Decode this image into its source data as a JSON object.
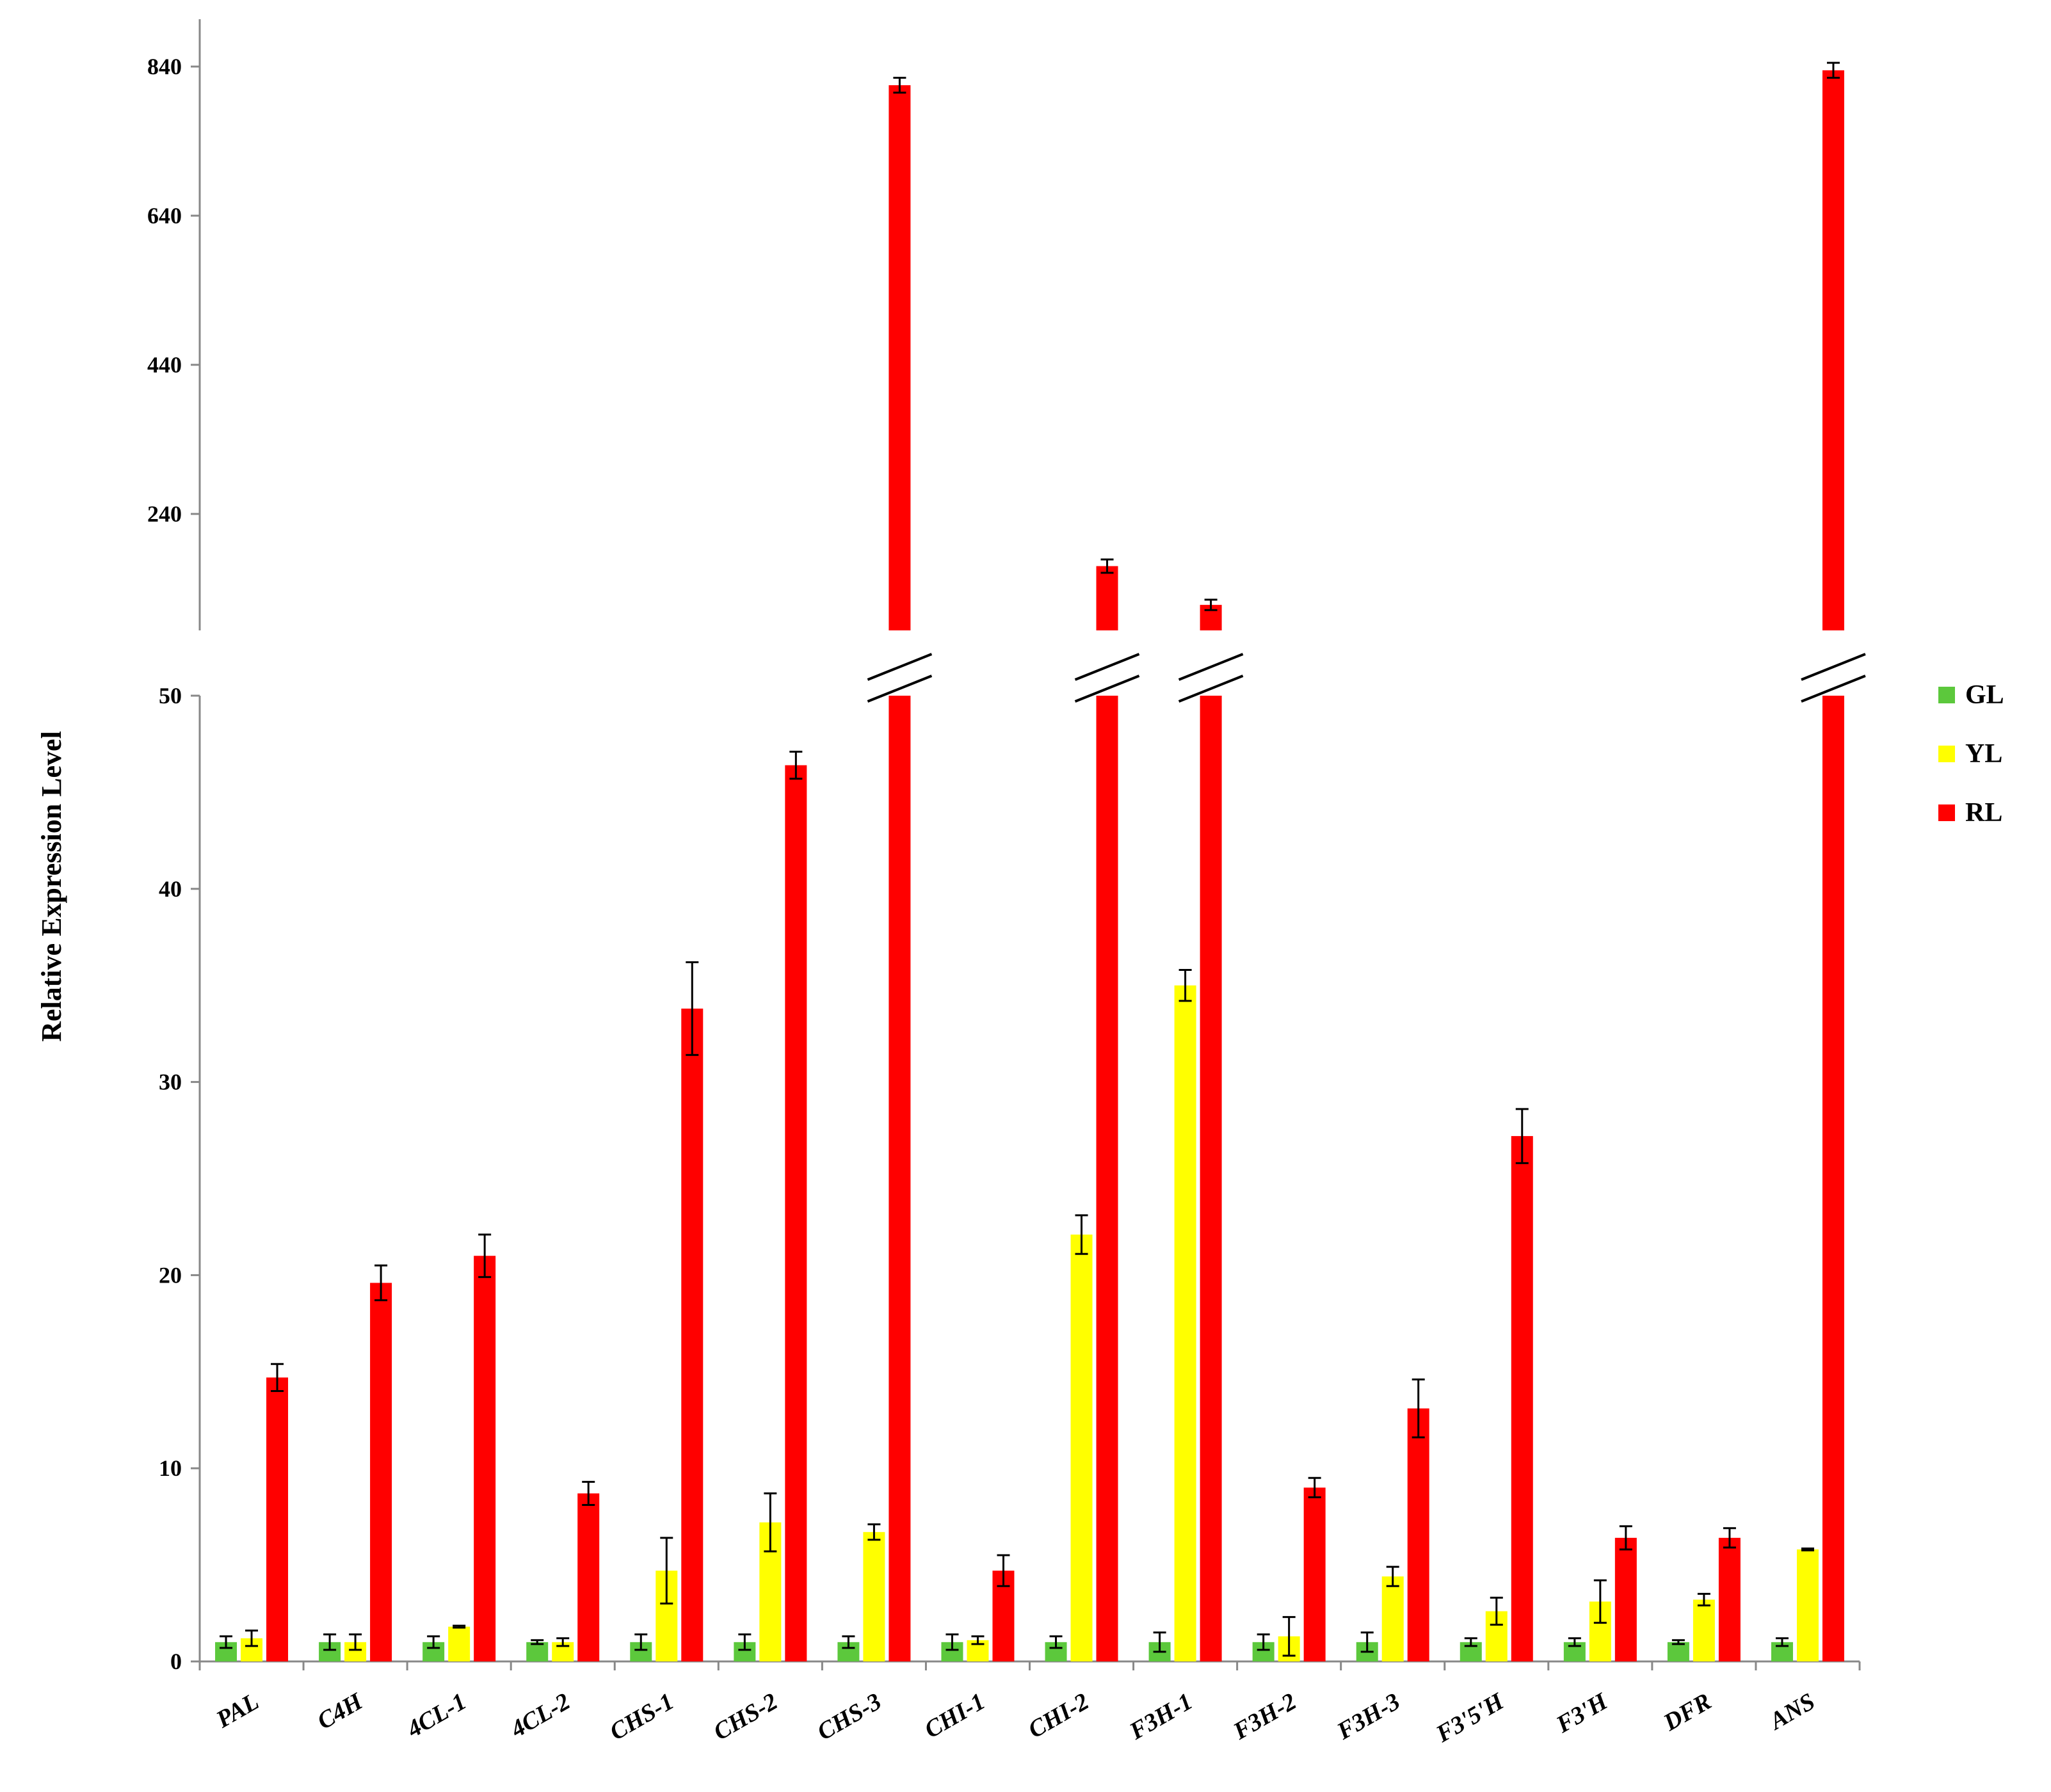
{
  "chart_data": {
    "type": "bar",
    "title": "",
    "xlabel": "",
    "ylabel": "Relative Expression Level",
    "categories": [
      "PAL",
      "C4H",
      "4CL-1",
      "4CL-2",
      "CHS-1",
      "CHS-2",
      "CHS-3",
      "CHI-1",
      "CHI-2",
      "F3H-1",
      "F3H-2",
      "F3H-3",
      "F3'5'H",
      "F3'H",
      "DFR",
      "ANS"
    ],
    "series": [
      {
        "name": "GL",
        "color": "#5cc83c",
        "values": [
          1.0,
          1.0,
          1.0,
          1.0,
          1.0,
          1.0,
          1.0,
          1.0,
          1.0,
          1.0,
          1.0,
          1.0,
          1.0,
          1.0,
          1.0,
          1.0
        ],
        "errors": [
          0.3,
          0.4,
          0.3,
          0.1,
          0.4,
          0.4,
          0.3,
          0.4,
          0.3,
          0.5,
          0.4,
          0.5,
          0.2,
          0.2,
          0.1,
          0.2
        ]
      },
      {
        "name": "YL",
        "color": "#ffff00",
        "values": [
          1.2,
          1.0,
          1.8,
          1.0,
          4.7,
          7.2,
          6.7,
          1.1,
          22.1,
          35.0,
          1.3,
          4.4,
          2.6,
          3.1,
          3.2,
          5.8
        ],
        "errors": [
          0.4,
          0.4,
          0.05,
          0.2,
          1.7,
          1.5,
          0.4,
          0.2,
          1.0,
          0.8,
          1.0,
          0.5,
          0.7,
          1.1,
          0.3,
          0.05
        ]
      },
      {
        "name": "RL",
        "color": "#ff0000",
        "values": [
          14.7,
          19.6,
          21.0,
          8.7,
          33.8,
          46.4,
          815,
          4.7,
          170,
          118,
          9.0,
          13.1,
          27.2,
          6.4,
          6.4,
          835
        ],
        "errors": [
          0.7,
          0.9,
          1.1,
          0.6,
          2.4,
          0.7,
          10,
          0.8,
          9,
          7,
          0.5,
          1.5,
          1.4,
          0.6,
          0.5,
          10
        ]
      }
    ],
    "ylim_lower": [
      0,
      50
    ],
    "yticks_lower": [
      "0",
      "10",
      "20",
      "30",
      "40",
      "50"
    ],
    "ylim_upper": [
      100,
      870
    ],
    "yticks_upper": [
      "240",
      "440",
      "640",
      "840"
    ],
    "axis_break": true,
    "broken_categories": [
      "CHS-3",
      "CHI-2",
      "F3H-1",
      "ANS"
    ],
    "legend": {
      "position": "right",
      "entries": [
        "GL",
        "YL",
        "RL"
      ]
    },
    "grid": false
  }
}
